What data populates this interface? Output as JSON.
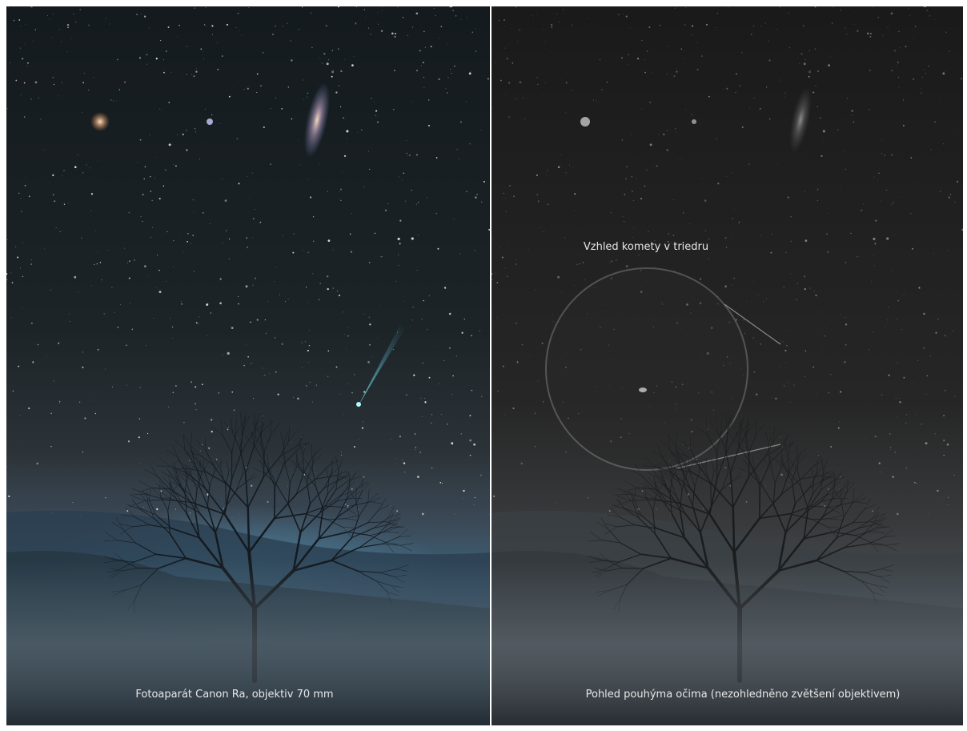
{
  "left_panel": {
    "caption": "Fotoaparát Canon  Ra, objektiv 70 mm"
  },
  "right_panel": {
    "annotation": "Vzhled komety v triedru",
    "caption": "Pohled pouhýma očima (nezohledněno zvětšení objektivem)"
  }
}
